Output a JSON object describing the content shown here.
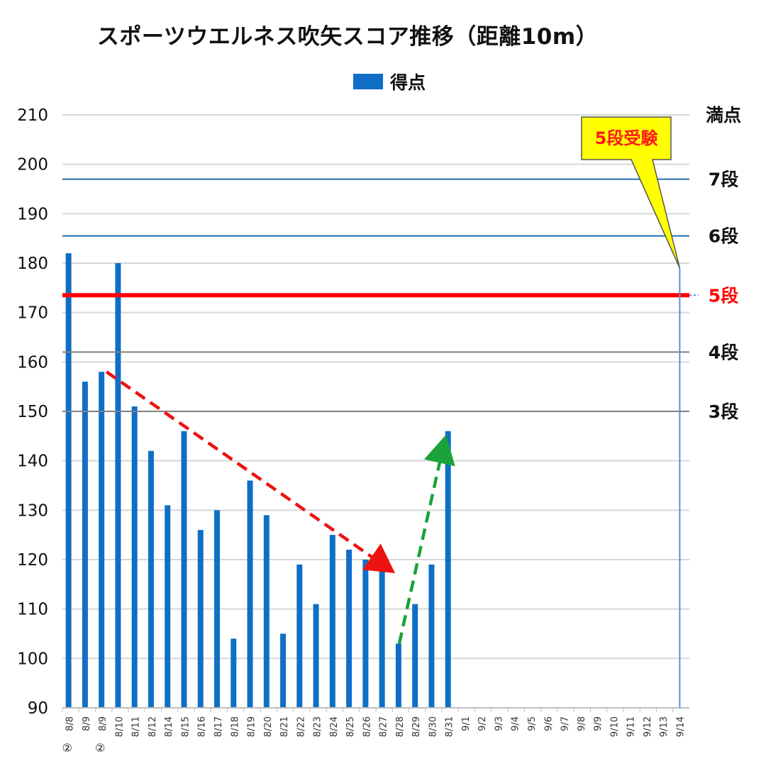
{
  "chart_data": {
    "type": "bar",
    "title": "スポーツウエルネス吹矢スコア推移（距離10m）",
    "legend": [
      "得点"
    ],
    "legend_position": "top",
    "series": [
      {
        "name": "得点",
        "color": "#0f6fc6",
        "values": [
          182,
          156,
          158,
          180,
          151,
          142,
          131,
          146,
          126,
          130,
          104,
          136,
          129,
          105,
          119,
          111,
          125,
          122,
          120,
          118,
          103,
          111,
          119,
          146,
          null,
          null,
          null,
          null,
          null,
          null,
          null,
          null,
          null,
          null,
          null,
          null,
          null,
          null
        ]
      }
    ],
    "categories": [
      "8/8",
      "8/9",
      "8/9",
      "8/10",
      "8/11",
      "8/12",
      "8/14",
      "8/15",
      "8/16",
      "8/17",
      "8/18",
      "8/19",
      "8/20",
      "8/21",
      "8/22",
      "8/23",
      "8/24",
      "8/25",
      "8/26",
      "8/27",
      "8/28",
      "8/29",
      "8/30",
      "8/31",
      "9/1",
      "9/2",
      "9/3",
      "9/4",
      "9/5",
      "9/6",
      "9/7",
      "9/8",
      "9/9",
      "9/10",
      "9/11",
      "9/12",
      "9/13",
      "9/14"
    ],
    "category_markers": [
      "②",
      "",
      "②",
      "",
      "",
      "",
      "",
      "",
      "",
      "",
      "",
      "",
      "",
      "",
      "",
      "",
      "",
      "",
      "",
      "",
      "",
      "",
      "",
      "",
      "",
      "",
      "",
      "",
      "",
      "",
      "",
      "",
      "",
      "",
      "",
      "",
      "",
      ""
    ],
    "ylim": [
      90,
      210
    ],
    "yticks": [
      90,
      100,
      110,
      120,
      130,
      140,
      150,
      160,
      170,
      180,
      190,
      200,
      210
    ],
    "grid": true,
    "reference_lines": [
      {
        "label": "満点",
        "value": 210,
        "color": "#d0d0d0",
        "label_color": "#111111",
        "width": 1
      },
      {
        "label": "7段",
        "value": 197,
        "color": "#1f6fb5",
        "label_color": "#111111",
        "width": 2
      },
      {
        "label": "6段",
        "value": 185.5,
        "color": "#1f6fb5",
        "label_color": "#111111",
        "width": 2
      },
      {
        "label": "5段",
        "value": 173.5,
        "color": "#ff0000",
        "label_color": "#ff0000",
        "width": 6
      },
      {
        "label": "4段",
        "value": 162,
        "color": "#808080",
        "label_color": "#111111",
        "width": 2
      },
      {
        "label": "3段",
        "value": 150,
        "color": "#808080",
        "label_color": "#111111",
        "width": 2
      }
    ],
    "annotations": [
      {
        "type": "arrow",
        "style": "dashed",
        "color": "#ee1111",
        "from": {
          "x": "8/9",
          "y": 158
        },
        "to": {
          "x": "8/27",
          "y": 118
        }
      },
      {
        "type": "arrow",
        "style": "dashed",
        "color": "#1aa33a",
        "from": {
          "x": "8/28",
          "y": 103
        },
        "to": {
          "x": "8/31",
          "y": 144
        }
      },
      {
        "type": "vline",
        "x": "9/14",
        "color": "#5b8fd6"
      },
      {
        "type": "callout",
        "text": "5段受験",
        "x": "9/14",
        "y": 179,
        "bg": "#ffff00",
        "text_color": "#ff1a1a"
      }
    ]
  }
}
